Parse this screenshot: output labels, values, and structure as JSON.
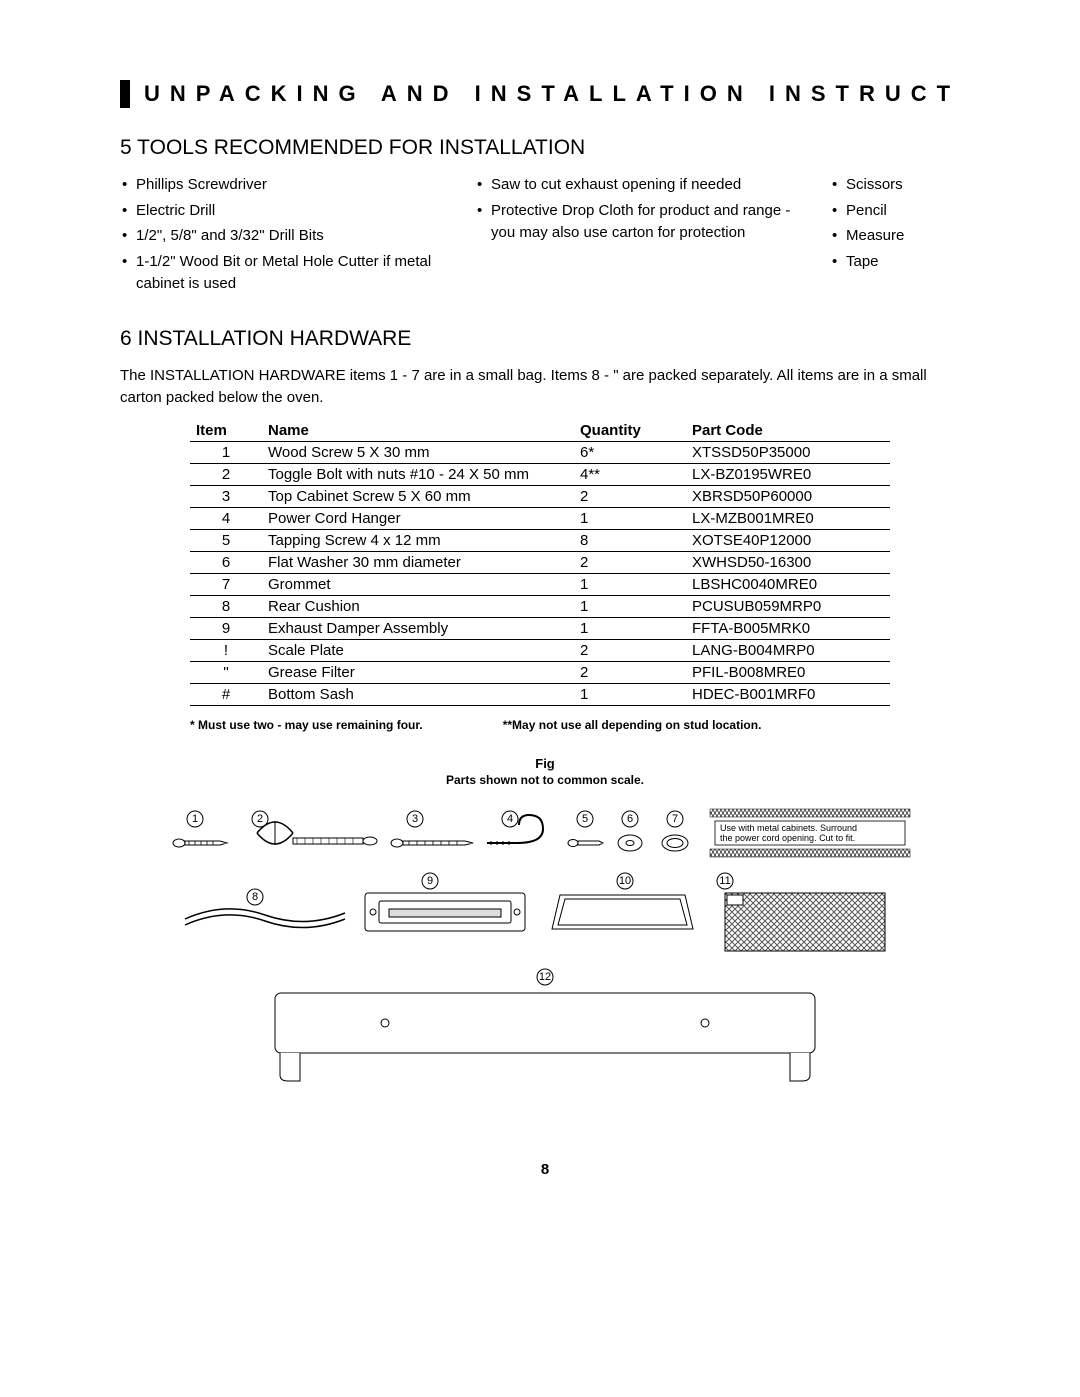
{
  "header": {
    "title": "UNPACKING AND INSTALLATION INSTRUCT"
  },
  "section5": {
    "number": "5",
    "title": "TOOLS RECOMMENDED FOR INSTALLATION",
    "col1": [
      "Phillips Screwdriver",
      "Electric Drill",
      "1/2\", 5/8\" and 3/32\" Drill Bits",
      "1-1/2\" Wood Bit or Metal Hole Cutter if metal cabinet is used"
    ],
    "col2": [
      "Saw to cut exhaust opening if needed",
      "Protective Drop Cloth for product and range - you may also use carton for protection"
    ],
    "col3": [
      "Scissors",
      "Pencil",
      "Measure",
      "Tape"
    ]
  },
  "section6": {
    "number": "6",
    "title": "INSTALLATION HARDWARE",
    "intro": "The INSTALLATION HARDWARE items 1  - 7  are in a small bag. Items 8  - \"   are packed separately. All items are in a small carton packed below the oven.",
    "columns": {
      "item": "Item",
      "name": "Name",
      "quantity": "Quantity",
      "part_code": "Part Code"
    },
    "rows": [
      {
        "item": "1",
        "name": "Wood Screw 5 X 30 mm",
        "quantity": "6*",
        "part_code": "XTSSD50P35000"
      },
      {
        "item": "2",
        "name": "Toggle Bolt with nuts #10 - 24 X 50 mm",
        "quantity": "4**",
        "part_code": "LX-BZ0195WRE0"
      },
      {
        "item": "3",
        "name": "Top Cabinet Screw 5 X 60 mm",
        "quantity": "2",
        "part_code": "XBRSD50P60000"
      },
      {
        "item": "4",
        "name": "Power Cord Hanger",
        "quantity": "1",
        "part_code": "LX-MZB001MRE0"
      },
      {
        "item": "5",
        "name": "Tapping Screw 4 x 12 mm",
        "quantity": "8",
        "part_code": "XOTSE40P12000"
      },
      {
        "item": "6",
        "name": "Flat Washer 30 mm diameter",
        "quantity": "2",
        "part_code": "XWHSD50-16300"
      },
      {
        "item": "7",
        "name": "Grommet",
        "quantity": "1",
        "part_code": "LBSHC0040MRE0"
      },
      {
        "item": "8",
        "name": "Rear Cushion",
        "quantity": "1",
        "part_code": "PCUSUB059MRP0"
      },
      {
        "item": "9",
        "name": "Exhaust Damper Assembly",
        "quantity": "1",
        "part_code": "FFTA-B005MRK0"
      },
      {
        "item": "!",
        "name": "Scale Plate",
        "quantity": "2",
        "part_code": "LANG-B004MRP0"
      },
      {
        "item": "\"",
        "name": "Grease Filter",
        "quantity": "2",
        "part_code": "PFIL-B008MRE0"
      },
      {
        "item": "#",
        "name": "Bottom Sash",
        "quantity": "1",
        "part_code": "HDEC-B001MRF0"
      }
    ],
    "footnote1": "* Must use two - may use remaining four.",
    "footnote2": "**May not use all depending on stud location.",
    "fig_label": "Fig",
    "scale_note": "Parts shown not to common scale."
  },
  "diagram": {
    "callouts": {
      "c1": "1",
      "c2": "2",
      "c3": "3",
      "c4": "4",
      "c5": "5",
      "c6": "6",
      "c7": "7",
      "c8": "8",
      "c9": "9",
      "c10": "10",
      "c11": "11",
      "c12": "12"
    },
    "grommet_note_line1": "Use with metal cabinets. Surround",
    "grommet_note_line2": "the power cord opening. Cut to fit."
  },
  "page_number": "8",
  "style": {
    "text_color": "#000000",
    "background": "#ffffff",
    "diagram_stroke": "#000000",
    "diagram_fill": "#ffffff",
    "hatch_color": "#888888"
  }
}
